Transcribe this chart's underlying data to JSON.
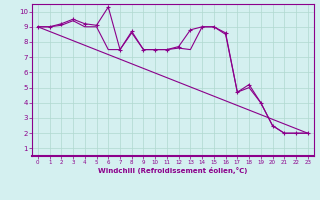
{
  "x_data": [
    0,
    1,
    2,
    3,
    4,
    5,
    6,
    7,
    8,
    9,
    10,
    11,
    12,
    13,
    14,
    15,
    16,
    17,
    18,
    19,
    20,
    21,
    22,
    23
  ],
  "y_jagged": [
    9,
    9,
    9.2,
    9.5,
    9.2,
    9.1,
    10.3,
    7.5,
    8.7,
    7.5,
    7.5,
    7.5,
    7.7,
    8.8,
    9.0,
    9.0,
    8.6,
    4.7,
    5.2,
    4.0,
    2.5,
    2.0,
    2.0,
    2.0
  ],
  "y_smooth": [
    9,
    9,
    9.1,
    9.4,
    9.0,
    9.0,
    7.5,
    7.5,
    8.6,
    7.5,
    7.5,
    7.5,
    7.6,
    7.5,
    9.0,
    9.0,
    8.5,
    4.7,
    5.0,
    4.0,
    2.5,
    2.0,
    2.0,
    2.0
  ],
  "trend_x": [
    0,
    23
  ],
  "trend_y": [
    9.0,
    2.0
  ],
  "line_color": "#8B008B",
  "bg_color": "#cceeff",
  "grid_color": "#aaddcc",
  "xlabel": "Windchill (Refroidissement éolien,°C)",
  "xlim": [
    -0.5,
    23.5
  ],
  "ylim": [
    0.5,
    10.5
  ],
  "xticks": [
    0,
    1,
    2,
    3,
    4,
    5,
    6,
    7,
    8,
    9,
    10,
    11,
    12,
    13,
    14,
    15,
    16,
    17,
    18,
    19,
    20,
    21,
    22,
    23
  ],
  "yticks": [
    1,
    2,
    3,
    4,
    5,
    6,
    7,
    8,
    9,
    10
  ]
}
